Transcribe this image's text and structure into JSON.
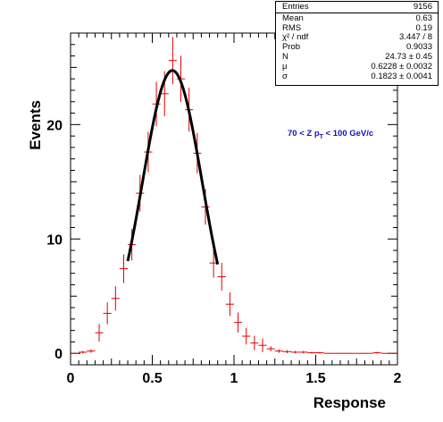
{
  "stats": [
    {
      "label": "Entries",
      "value": "9156"
    },
    {
      "label": "Mean",
      "value": "0.63"
    },
    {
      "label": "RMS",
      "value": "0.19"
    },
    {
      "label": "χ² / ndf",
      "value": "3.447 / 8"
    },
    {
      "label": "Prob",
      "value": "0.9033"
    },
    {
      "label": "N",
      "value": "24.73 ± 0.45"
    },
    {
      "label": "μ",
      "value": "0.6228 ± 0.0032"
    },
    {
      "label": "σ",
      "value": "0.1823 ± 0.0041"
    }
  ],
  "annotation": "70 < Z p_T < 100 GeV/c",
  "chart_data": {
    "type": "scatter",
    "xlabel": "Response",
    "ylabel": "Events",
    "xlim": [
      0,
      2
    ],
    "ylim": [
      -1,
      28
    ],
    "x_ticks": [
      0,
      0.5,
      1,
      1.5,
      2
    ],
    "y_ticks": [
      0,
      10,
      20
    ],
    "grid": false,
    "colors": {
      "points": "#e00000",
      "fit": "#000000",
      "annotation": "#1010c8"
    },
    "points": {
      "x": [
        0.025,
        0.075,
        0.125,
        0.175,
        0.225,
        0.275,
        0.325,
        0.375,
        0.425,
        0.475,
        0.525,
        0.575,
        0.625,
        0.675,
        0.725,
        0.775,
        0.825,
        0.875,
        0.925,
        0.975,
        1.025,
        1.075,
        1.125,
        1.175,
        1.225,
        1.275,
        1.325,
        1.375,
        1.425,
        1.475,
        1.525,
        1.575,
        1.625,
        1.675,
        1.725,
        1.775,
        1.825,
        1.875,
        1.925,
        1.975
      ],
      "y": [
        0,
        0.1,
        0.2,
        1.8,
        3.5,
        4.8,
        7.4,
        9.5,
        14.0,
        17.6,
        21.8,
        22.7,
        25.6,
        24.0,
        21.3,
        17.5,
        12.8,
        7.9,
        6.7,
        4.3,
        2.7,
        1.5,
        0.9,
        0.7,
        0.4,
        0.2,
        0.15,
        0.1,
        0.1,
        0.05,
        0.05,
        0,
        0,
        0,
        0,
        0,
        0,
        0.05,
        0,
        0
      ],
      "x_error": 0.025
    },
    "fit": {
      "function": "gaus",
      "N": 24.73,
      "mu": 0.6228,
      "sigma": 0.1823,
      "range": [
        0.35,
        0.9
      ]
    }
  }
}
